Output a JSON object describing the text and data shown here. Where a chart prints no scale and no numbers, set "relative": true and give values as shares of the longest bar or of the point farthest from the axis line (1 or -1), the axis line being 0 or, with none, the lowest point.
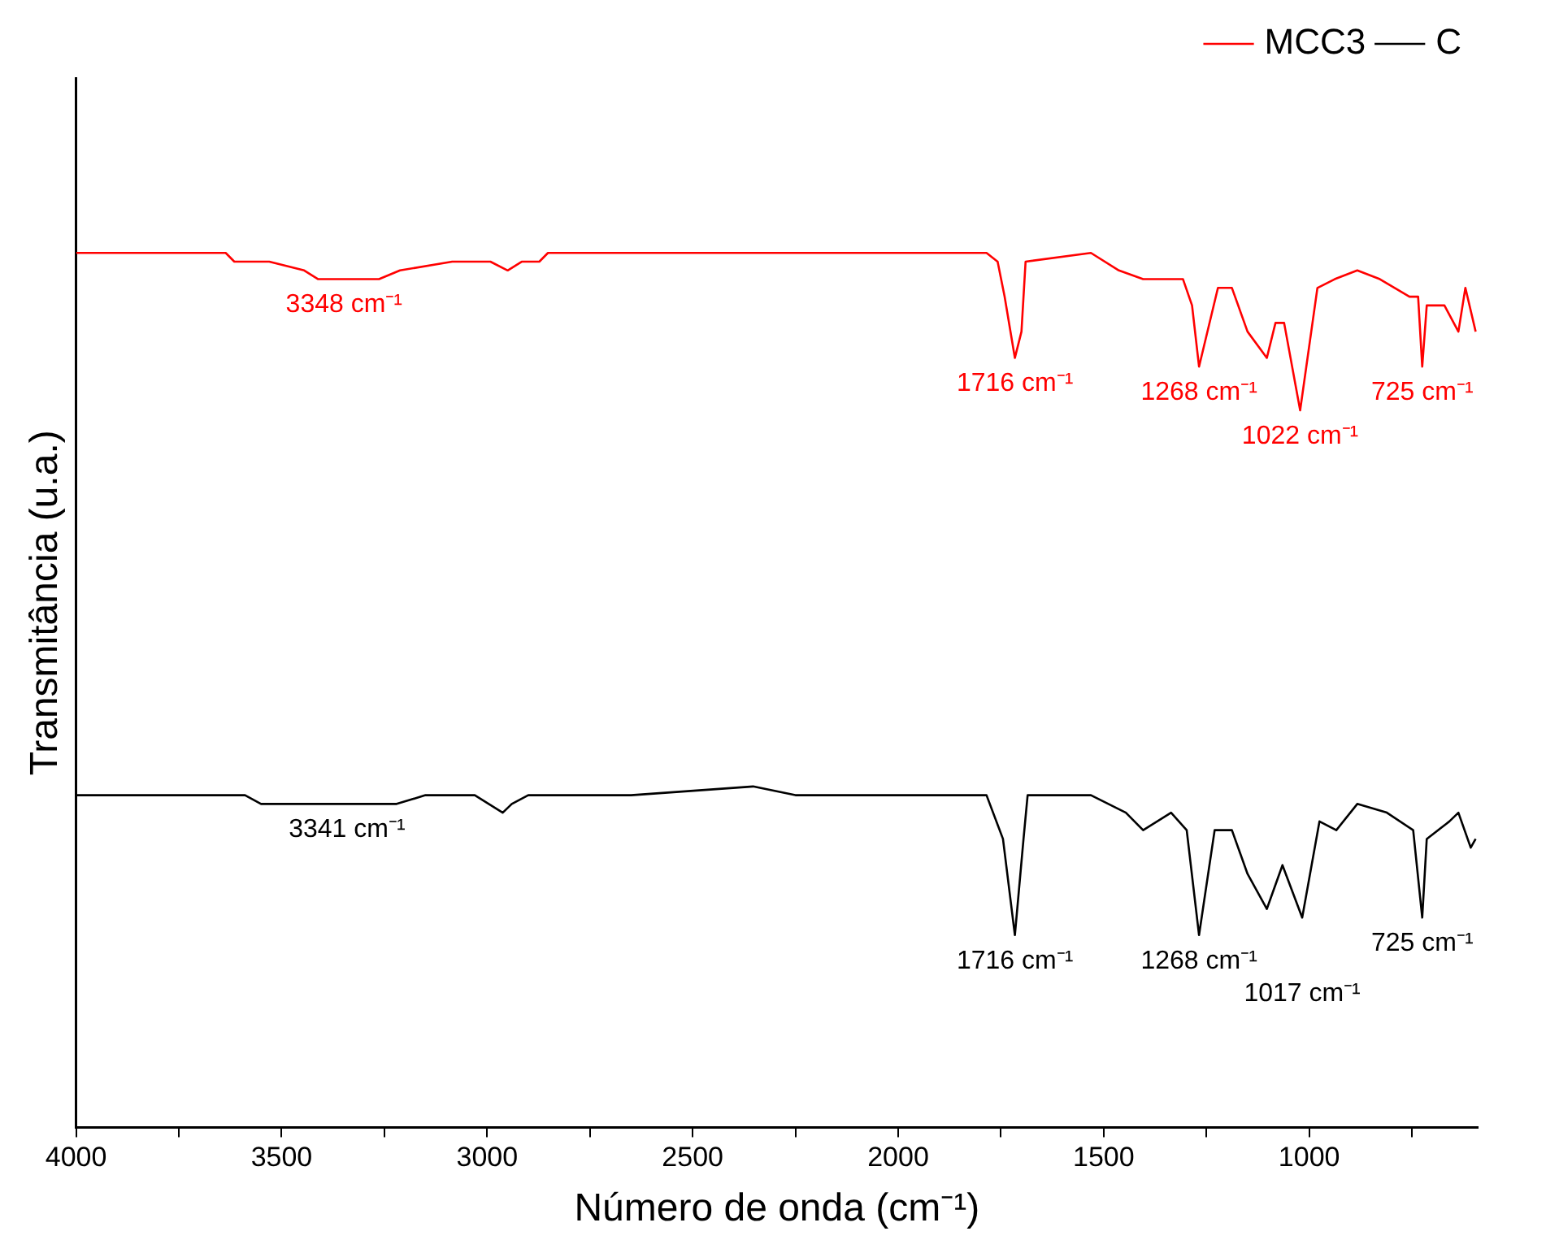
{
  "chart_data": {
    "type": "line",
    "relative": true,
    "xlabel": "Número de onda (cm⁻¹)",
    "ylabel": "Transmitância (u.a.)",
    "xlim": [
      4000,
      590
    ],
    "xticks": [
      4000,
      {
        "value": 3750,
        "label": null
      },
      3500,
      {
        "value": 3250,
        "label": null
      },
      3000,
      {
        "value": 2750,
        "label": null
      },
      2500,
      {
        "value": 2250,
        "label": null
      },
      2000,
      {
        "value": 1750,
        "label": null
      },
      1500,
      {
        "value": 1250,
        "label": null
      },
      1000,
      {
        "value": 750,
        "label": null
      }
    ],
    "tick_labels": "x",
    "grid": false,
    "legend": "top right",
    "line_style": "solid",
    "series": [
      {
        "name": "MCC3",
        "color": "#ff0000",
        "x": [
          4000,
          3636,
          3615,
          3530,
          3445,
          3411,
          3263,
          3212,
          3085,
          3043,
          2992,
          2950,
          2916,
          2873,
          2852,
          2662,
          1785,
          1758,
          1741,
          1716,
          1700,
          1690,
          1531,
          1463,
          1404,
          1307,
          1285,
          1268,
          1222,
          1188,
          1150,
          1103,
          1082,
          1061,
          1022,
          980,
          938,
          883,
          828,
          756,
          735,
          725,
          714,
          671,
          637,
          620,
          595
        ],
        "values": [
          1.0,
          1.0,
          0.99,
          0.99,
          0.98,
          0.97,
          0.97,
          0.98,
          0.99,
          0.99,
          0.99,
          0.98,
          0.99,
          0.99,
          1.0,
          1.0,
          1.0,
          0.99,
          0.95,
          0.88,
          0.91,
          0.99,
          1.0,
          0.98,
          0.97,
          0.97,
          0.94,
          0.87,
          0.96,
          0.96,
          0.91,
          0.88,
          0.92,
          0.92,
          0.82,
          0.96,
          0.97,
          0.98,
          0.97,
          0.95,
          0.95,
          0.87,
          0.94,
          0.94,
          0.91,
          0.96,
          0.91
        ]
      },
      {
        "name": "C",
        "color": "#000000",
        "x": [
          4000,
          3636,
          3589,
          3550,
          3466,
          3428,
          3220,
          3150,
          3030,
          2962,
          2940,
          2900,
          2650,
          2353,
          2250,
          1785,
          1745,
          1716,
          1695,
          1685,
          1531,
          1446,
          1404,
          1336,
          1298,
          1268,
          1230,
          1188,
          1150,
          1103,
          1065,
          1017,
          975,
          934,
          883,
          811,
          747,
          725,
          714,
          659,
          637,
          607,
          595
        ],
        "values": [
          0.38,
          0.38,
          0.38,
          0.37,
          0.37,
          0.37,
          0.37,
          0.38,
          0.38,
          0.36,
          0.37,
          0.38,
          0.38,
          0.39,
          0.38,
          0.38,
          0.33,
          0.22,
          0.33,
          0.38,
          0.38,
          0.36,
          0.34,
          0.36,
          0.34,
          0.22,
          0.34,
          0.34,
          0.29,
          0.25,
          0.3,
          0.24,
          0.35,
          0.34,
          0.37,
          0.36,
          0.34,
          0.24,
          0.33,
          0.35,
          0.36,
          0.32,
          0.33
        ]
      }
    ],
    "annotations": [
      {
        "text": "3348 cm⁻¹",
        "x": 3348,
        "y": 0.97
      },
      {
        "text": "1716 cm⁻¹",
        "x": 1716,
        "y": 0.88
      },
      {
        "text": "1268 cm⁻¹",
        "x": 1268,
        "y": 0.87
      },
      {
        "text": "1022 cm⁻¹",
        "x": 1022,
        "y": 0.82
      },
      {
        "text": "725 cm⁻¹",
        "x": 725,
        "y": 0.87
      },
      {
        "text": "3341 cm⁻¹",
        "x": 3341,
        "y": 0.37
      },
      {
        "text": "1716 cm⁻¹",
        "x": 1716,
        "y": 0.22
      },
      {
        "text": "1268 cm⁻¹",
        "x": 1268,
        "y": 0.22
      },
      {
        "text": "1017 cm⁻¹",
        "x": 1017,
        "y": 0.24
      },
      {
        "text": "725 cm⁻¹",
        "x": 725,
        "y": 0.24
      }
    ]
  }
}
